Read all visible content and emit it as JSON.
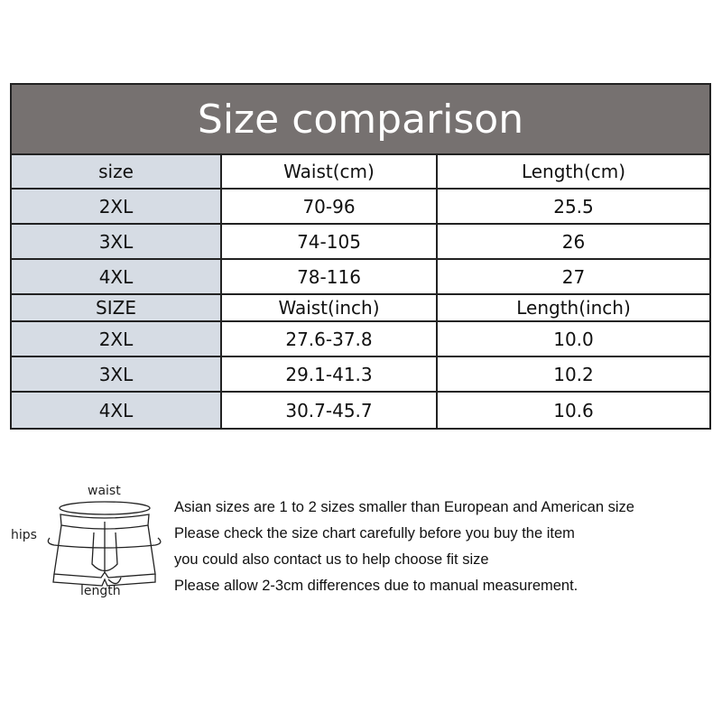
{
  "title": "Size comparison",
  "cm_table": {
    "headers": [
      "size",
      "Waist(cm)",
      "Length(cm)"
    ],
    "rows": [
      [
        "2XL",
        "70-96",
        "25.5"
      ],
      [
        "3XL",
        "74-105",
        "26"
      ],
      [
        "4XL",
        "78-116",
        "27"
      ]
    ]
  },
  "inch_table": {
    "headers": [
      "SIZE",
      "Waist(inch)",
      "Length(inch)"
    ],
    "rows": [
      [
        "2XL",
        "27.6-37.8",
        "10.0"
      ],
      [
        "3XL",
        "29.1-41.3",
        "10.2"
      ],
      [
        "4XL",
        "30.7-45.7",
        "10.6"
      ]
    ]
  },
  "diagram": {
    "waist": "waist",
    "hips": "hips",
    "length": "length"
  },
  "notes": [
    "Asian sizes are 1 to 2 sizes smaller than European and American size",
    "Please check the size chart carefully before you buy the item",
    "you could also contact us to help choose fit size",
    "Please allow 2-3cm differences due to manual measurement."
  ],
  "colors": {
    "title_bg": "#767170",
    "size_col_bg": "#d6dce4"
  }
}
